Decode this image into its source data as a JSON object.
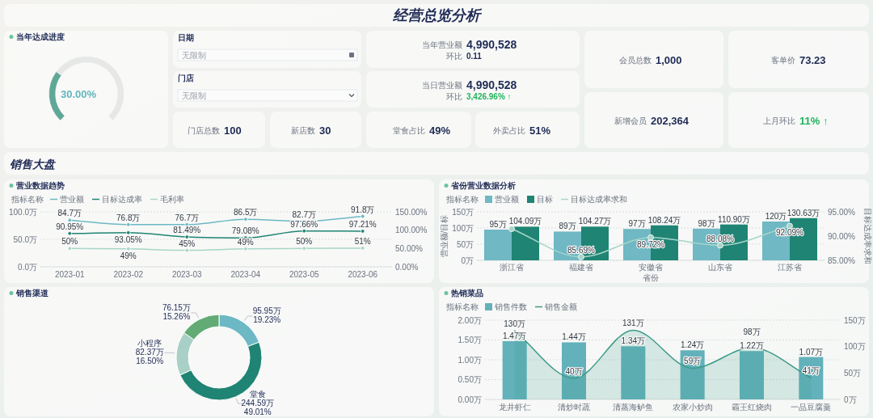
{
  "chart_data": [
    {
      "type": "donut",
      "title": "当年达成进度",
      "categories": [
        null,
        null
      ],
      "values": [
        30,
        70
      ],
      "colors": [
        "#5fa796",
        "#e6e8e7"
      ],
      "value_labels": [
        "30.00%",
        null
      ]
    },
    {
      "type": "other",
      "title": "经营总览分析",
      "annotations": [
        "日期",
        "无限制",
        "门店",
        "无限制",
        "当年营业额",
        "4,990,528",
        "环比",
        "0.11",
        "当日营业额",
        "4,990,528",
        "环比",
        "3,426.96% ↑",
        "门店总数",
        "100",
        "新店数",
        "30",
        "堂食占比",
        "49%",
        "外卖占比",
        "51%",
        "会员总数",
        "1,000",
        "客单价",
        "73.23",
        "新增会员",
        "202,364",
        "上月环比",
        "11% ↑",
        "销售大盘"
      ]
    },
    {
      "type": "line",
      "title": "营业数据趋势",
      "legend_title": "指标名称",
      "legend": "top left",
      "grid": "y",
      "marker": "circle",
      "categories": [
        "2023-01",
        "2023-02",
        "2023-03",
        "2023-04",
        "2023-05",
        "2023-06"
      ],
      "ylim": [
        0,
        100
      ],
      "yticks": [
        {
          "value": 0,
          "label": "0.0万"
        },
        {
          "value": 50,
          "label": "50.0万"
        },
        {
          "value": 100,
          "label": "100.0万"
        }
      ],
      "y2lim": [
        0,
        150
      ],
      "y2ticks": [
        {
          "value": 0,
          "label": "0.00%"
        },
        {
          "value": 50,
          "label": "50.00%"
        },
        {
          "value": 100,
          "label": "100.00%"
        },
        {
          "value": 150,
          "label": "150.00%"
        }
      ],
      "series": [
        {
          "name": "营业额",
          "color": "#6cb8c4",
          "values": [
            84.7,
            76.8,
            76.7,
            86.5,
            82.7,
            91.8
          ],
          "value_labels": [
            "84.7万",
            "76.8万",
            "76.7万",
            "86.5万",
            "82.7万",
            "91.8万"
          ]
        },
        {
          "name": "目标达成率",
          "color": "#1f8474",
          "axis": "y2",
          "values": [
            90.95,
            93.05,
            81.49,
            79.08,
            97.66,
            97.21
          ],
          "value_labels": [
            "90.95%",
            "93.05%",
            "81.49%",
            "79.08%",
            "97.66%",
            "97.21%"
          ]
        },
        {
          "name": "毛利率",
          "color": "#a8d5c8",
          "axis": "y2",
          "values": [
            50,
            49,
            45,
            49,
            50,
            51
          ],
          "value_labels": [
            "50%",
            "49%",
            "45%",
            "49%",
            "50%",
            "51%"
          ]
        }
      ]
    },
    {
      "type": "bar",
      "title": "省份营业数据分析",
      "legend_title": "指标名称",
      "legend": "top left",
      "grid": "y",
      "marker": "circle",
      "xlabel": "省份",
      "ylabel": "营业额/目标",
      "y2label": "目标达成率求和",
      "categories": [
        "浙江省",
        "福建省",
        "安徽省",
        "山东省",
        "江苏省"
      ],
      "ylim": [
        0,
        150
      ],
      "yticks": [
        {
          "value": 0,
          "label": "0万"
        },
        {
          "value": 50,
          "label": "50万"
        },
        {
          "value": 100,
          "label": "100万"
        },
        {
          "value": 150,
          "label": "150万"
        }
      ],
      "y2lim": [
        85,
        95
      ],
      "y2ticks": [
        {
          "value": 85,
          "label": "85.00%"
        },
        {
          "value": 90,
          "label": "90.00%"
        },
        {
          "value": 95,
          "label": "95.00%"
        }
      ],
      "series": [
        {
          "name": "营业额",
          "color": "#6fb8c4",
          "values": [
            95,
            89,
            97,
            98,
            120
          ],
          "value_labels": [
            "95万",
            "89万",
            "97万",
            "98万",
            "120万"
          ]
        },
        {
          "name": "目标",
          "color": "#1f8474",
          "values": [
            104.09,
            104.27,
            108.24,
            110.9,
            130.63
          ],
          "value_labels": [
            "104.09万",
            "104.27万",
            "108.24万",
            "110.90万",
            "130.63万"
          ]
        },
        {
          "name": "目标达成率求和",
          "type": "line",
          "axis": "y2",
          "color": "#a8d5c8",
          "values": [
            91.5,
            85.69,
            89.72,
            88.08,
            92.09
          ],
          "value_labels": [
            null,
            "85.69%",
            "89.72%",
            "88.08%",
            "92.09%"
          ]
        }
      ]
    },
    {
      "type": "donut",
      "title": "销售渠道",
      "categories": [
        null,
        "堂食",
        "小程序",
        null
      ],
      "values": [
        95.95,
        244.59,
        82.37,
        76.15
      ],
      "colors": [
        "#6cb8c4",
        "#1f8474",
        "#a8d0c6",
        "#62ab74"
      ],
      "value_labels": [
        "95.95万\n19.23%",
        "244.59万\n49.01%",
        "82.37万\n16.50%",
        "76.15万\n15.26%"
      ]
    },
    {
      "type": "bar",
      "title": "热销菜品",
      "legend_title": "指标名称",
      "legend": "top left",
      "grid": "y",
      "categories": [
        "龙井虾仁",
        "清炒时蔬",
        "清蒸海鲈鱼",
        "农家小炒肉",
        "霸王红烧肉",
        "一品豆腐羹"
      ],
      "ylim": [
        0,
        2
      ],
      "yticks": [
        {
          "value": 0,
          "label": "0.00万"
        },
        {
          "value": 0.5,
          "label": "0.50万"
        },
        {
          "value": 1,
          "label": "1.00万"
        },
        {
          "value": 1.5,
          "label": "1.50万"
        },
        {
          "value": 2,
          "label": "2.00万"
        }
      ],
      "y2lim": [
        0,
        150
      ],
      "y2ticks": [
        {
          "value": 0,
          "label": "0万"
        },
        {
          "value": 50,
          "label": "50万"
        },
        {
          "value": 100,
          "label": "100万"
        },
        {
          "value": 150,
          "label": "150万"
        }
      ],
      "series": [
        {
          "name": "销售件数",
          "color": "#62b1bb",
          "values": [
            1.47,
            1.44,
            1.34,
            1.24,
            1.22,
            1.07
          ],
          "value_labels": [
            "1.47万",
            "1.44万",
            "1.34万",
            "1.24万",
            "1.22万",
            "1.07万"
          ]
        },
        {
          "name": "销售金额",
          "type": "area",
          "axis": "y2",
          "color": "#3d9a88",
          "values": [
            130,
            40,
            131,
            59,
            98,
            41
          ],
          "value_labels": [
            "130万",
            "40万",
            "131万",
            "59万",
            "98万",
            "41万"
          ]
        }
      ]
    }
  ]
}
